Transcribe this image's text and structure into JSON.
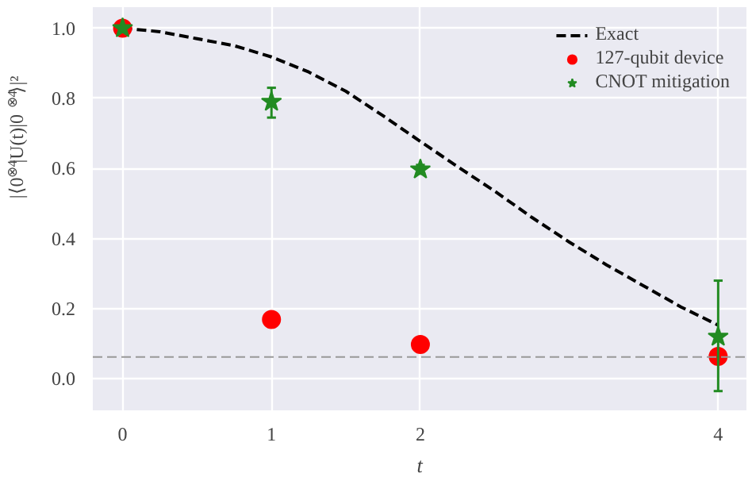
{
  "chart_data": {
    "type": "scatter",
    "xlabel": "t",
    "ylabel": "|⟨0$^{⊗4}$|U(t)|0$^{⊗4}$⟩|²",
    "xlim": [
      -0.2,
      4.19
    ],
    "ylim": [
      -0.09,
      1.06
    ],
    "xticks": [
      0,
      1,
      2,
      4
    ],
    "yticks": [
      {
        "value": 0,
        "label": "0.0"
      },
      0.2,
      0.4,
      0.6,
      0.8,
      {
        "value": 1,
        "label": "1.0"
      }
    ],
    "grid": true,
    "legend": "top right",
    "series": [
      {
        "name": "Exact",
        "type": "line",
        "color": "#000000",
        "line_style": "dashed",
        "marker": "none",
        "x": [
          0,
          0.25,
          0.5,
          0.75,
          1,
          1.25,
          1.5,
          1.75,
          2,
          2.25,
          2.5,
          2.75,
          3,
          3.25,
          3.5,
          3.75,
          4
        ],
        "values": [
          1.0,
          0.99,
          0.97,
          0.95,
          0.918,
          0.875,
          0.82,
          0.75,
          0.677,
          0.605,
          0.535,
          0.46,
          0.39,
          0.325,
          0.265,
          0.205,
          0.153
        ]
      },
      {
        "name": "127-qubit device",
        "color": "#ff0000",
        "marker": "circle",
        "x": [
          0,
          1,
          2,
          4
        ],
        "values": [
          1.0,
          0.169,
          0.098,
          0.064
        ]
      },
      {
        "name": "CNOT mitigation",
        "color": "#228b22",
        "marker": "star",
        "x": [
          0,
          1,
          2,
          4
        ],
        "values": [
          1.0,
          0.79,
          0.597,
          0.12
        ],
        "errors": [
          null,
          [
            0.745,
            0.83
          ],
          [
            0.585,
            0.61
          ],
          [
            -0.035,
            0.28
          ]
        ]
      }
    ],
    "ref_lines": [
      {
        "axis": "y",
        "value": 0.062,
        "color": "#999999",
        "line_style": "dashed"
      }
    ]
  }
}
